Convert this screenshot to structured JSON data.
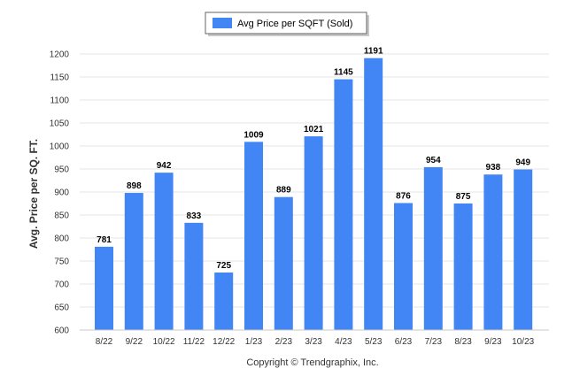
{
  "chart_data": {
    "type": "bar",
    "categories": [
      "8/22",
      "9/22",
      "10/22",
      "11/22",
      "12/22",
      "1/23",
      "2/23",
      "3/23",
      "4/23",
      "5/23",
      "6/23",
      "7/23",
      "8/23",
      "9/23",
      "10/23"
    ],
    "series": [
      {
        "name": "Avg Price per SQFT (Sold)",
        "values": [
          781,
          898,
          942,
          833,
          725,
          1009,
          889,
          1021,
          1145,
          1191,
          876,
          954,
          875,
          938,
          949
        ]
      }
    ],
    "xlabel": "",
    "ylabel": "Avg. Price per SQ. FT.",
    "ylim": [
      600,
      1200
    ],
    "yticks": [
      600,
      650,
      700,
      750,
      800,
      850,
      900,
      950,
      1000,
      1050,
      1100,
      1150,
      1200
    ],
    "grid": true,
    "legend_position": "top-center",
    "bar_color": "#4285f4",
    "data_labels": true
  },
  "footer": {
    "copyright": "Copyright © Trendgraphix, Inc."
  }
}
